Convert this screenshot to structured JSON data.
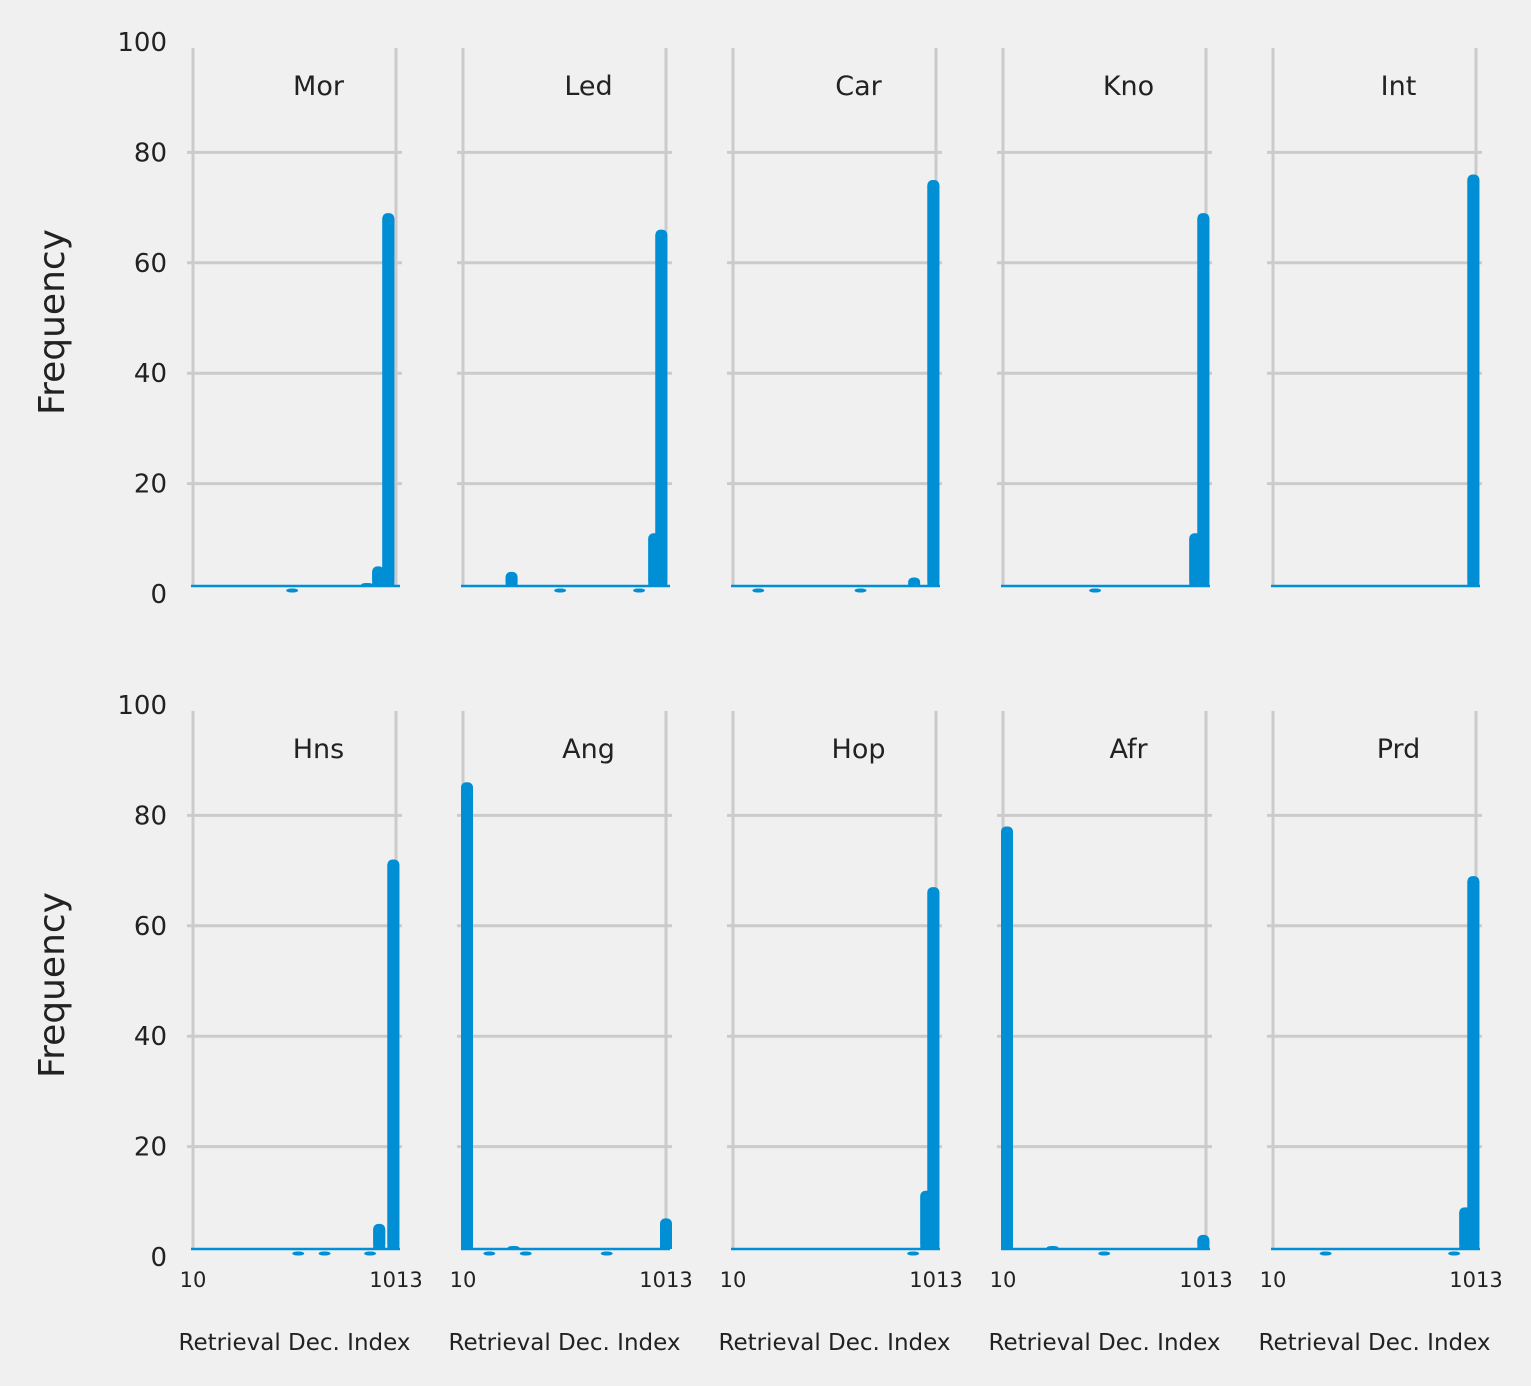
{
  "chart_data": {
    "type": "bar",
    "layout": "small-multiples",
    "rows": 2,
    "cols": 5,
    "bar_color": "#008fd5",
    "grid_color": "#cbcbcb",
    "background": "#f0f0f0",
    "grid": true,
    "ylabel": "Frequency",
    "xlabel": "Retrieval Dec. Index",
    "ylim": [
      0,
      100
    ],
    "yticks": [
      0,
      20,
      40,
      60,
      80,
      100
    ],
    "xlim": [
      10,
      1013
    ],
    "xticks": [
      10,
      1013
    ],
    "xtick_labels": [
      "10",
      "1013"
    ],
    "panels": [
      {
        "title": "Mor",
        "bars": [
          {
            "x": 500,
            "y": 1
          },
          {
            "x": 870,
            "y": 2
          },
          {
            "x": 925,
            "y": 5
          },
          {
            "x": 975,
            "y": 69
          }
        ]
      },
      {
        "title": "Led",
        "bars": [
          {
            "x": 250,
            "y": 4
          },
          {
            "x": 490,
            "y": 1
          },
          {
            "x": 880,
            "y": 1
          },
          {
            "x": 955,
            "y": 11
          },
          {
            "x": 990,
            "y": 66
          }
        ]
      },
      {
        "title": "Car",
        "bars": [
          {
            "x": 135,
            "y": 1
          },
          {
            "x": 640,
            "y": 1
          },
          {
            "x": 905,
            "y": 3
          },
          {
            "x": 1000,
            "y": 75
          }
        ]
      },
      {
        "title": "Kno",
        "bars": [
          {
            "x": 465,
            "y": 1
          },
          {
            "x": 960,
            "y": 11
          },
          {
            "x": 1000,
            "y": 69
          }
        ]
      },
      {
        "title": "Int",
        "bars": [
          {
            "x": 1000,
            "y": 76
          }
        ]
      },
      {
        "title": "Hns",
        "bars": [
          {
            "x": 530,
            "y": 1
          },
          {
            "x": 660,
            "y": 1
          },
          {
            "x": 885,
            "y": 1
          },
          {
            "x": 930,
            "y": 6
          },
          {
            "x": 1000,
            "y": 72
          }
        ]
      },
      {
        "title": "Ang",
        "bars": [
          {
            "x": 10,
            "y": 86
          },
          {
            "x": 140,
            "y": 1
          },
          {
            "x": 260,
            "y": 2
          },
          {
            "x": 320,
            "y": 1
          },
          {
            "x": 720,
            "y": 1
          },
          {
            "x": 1013,
            "y": 7
          }
        ]
      },
      {
        "title": "Hop",
        "bars": [
          {
            "x": 900,
            "y": 1
          },
          {
            "x": 965,
            "y": 12
          },
          {
            "x": 1000,
            "y": 67
          }
        ]
      },
      {
        "title": "Afr",
        "bars": [
          {
            "x": 10,
            "y": 78
          },
          {
            "x": 255,
            "y": 2
          },
          {
            "x": 510,
            "y": 1
          },
          {
            "x": 1000,
            "y": 4
          }
        ]
      },
      {
        "title": "Prd",
        "bars": [
          {
            "x": 270,
            "y": 1
          },
          {
            "x": 905,
            "y": 1
          },
          {
            "x": 960,
            "y": 9
          },
          {
            "x": 1000,
            "y": 69
          }
        ]
      }
    ]
  }
}
